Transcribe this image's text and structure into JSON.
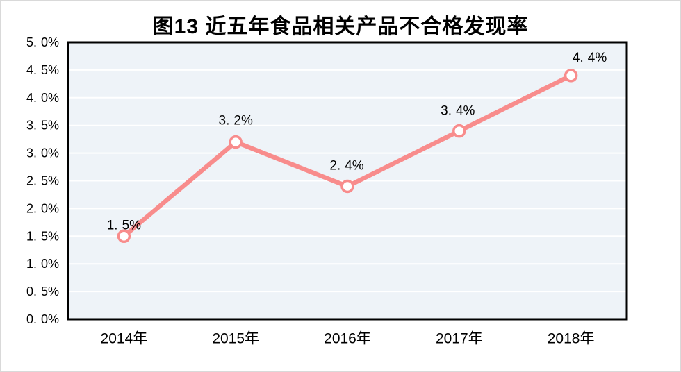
{
  "chart_data": {
    "type": "line",
    "title": "图13 近五年食品相关产品不合格发现率",
    "categories": [
      "2014年",
      "2015年",
      "2016年",
      "2017年",
      "2018年"
    ],
    "values": [
      1.5,
      3.2,
      2.4,
      3.4,
      4.4
    ],
    "point_labels": [
      "1.5%",
      "3.2%",
      "2.4%",
      "3.4%",
      "4.4%"
    ],
    "y_tick_labels": [
      "0.0%",
      "0.5%",
      "1.0%",
      "1.5%",
      "2.0%",
      "2.5%",
      "3.0%",
      "3.5%",
      "4.0%",
      "4.5%",
      "5.0%"
    ],
    "xlabel": "",
    "ylabel": "",
    "ylim": [
      0,
      5
    ],
    "y_tick_step": 0.5,
    "grid": true,
    "legend": false,
    "colors": {
      "line": "#F88C8C",
      "marker_fill": "#FFFFFF",
      "plot_background": "#EEF3F8",
      "gridline": "#FFFFFF",
      "plot_border": "#000000",
      "text": "#000000",
      "frame_border": "#D9D9D9",
      "background": "#FFFFFF"
    }
  }
}
